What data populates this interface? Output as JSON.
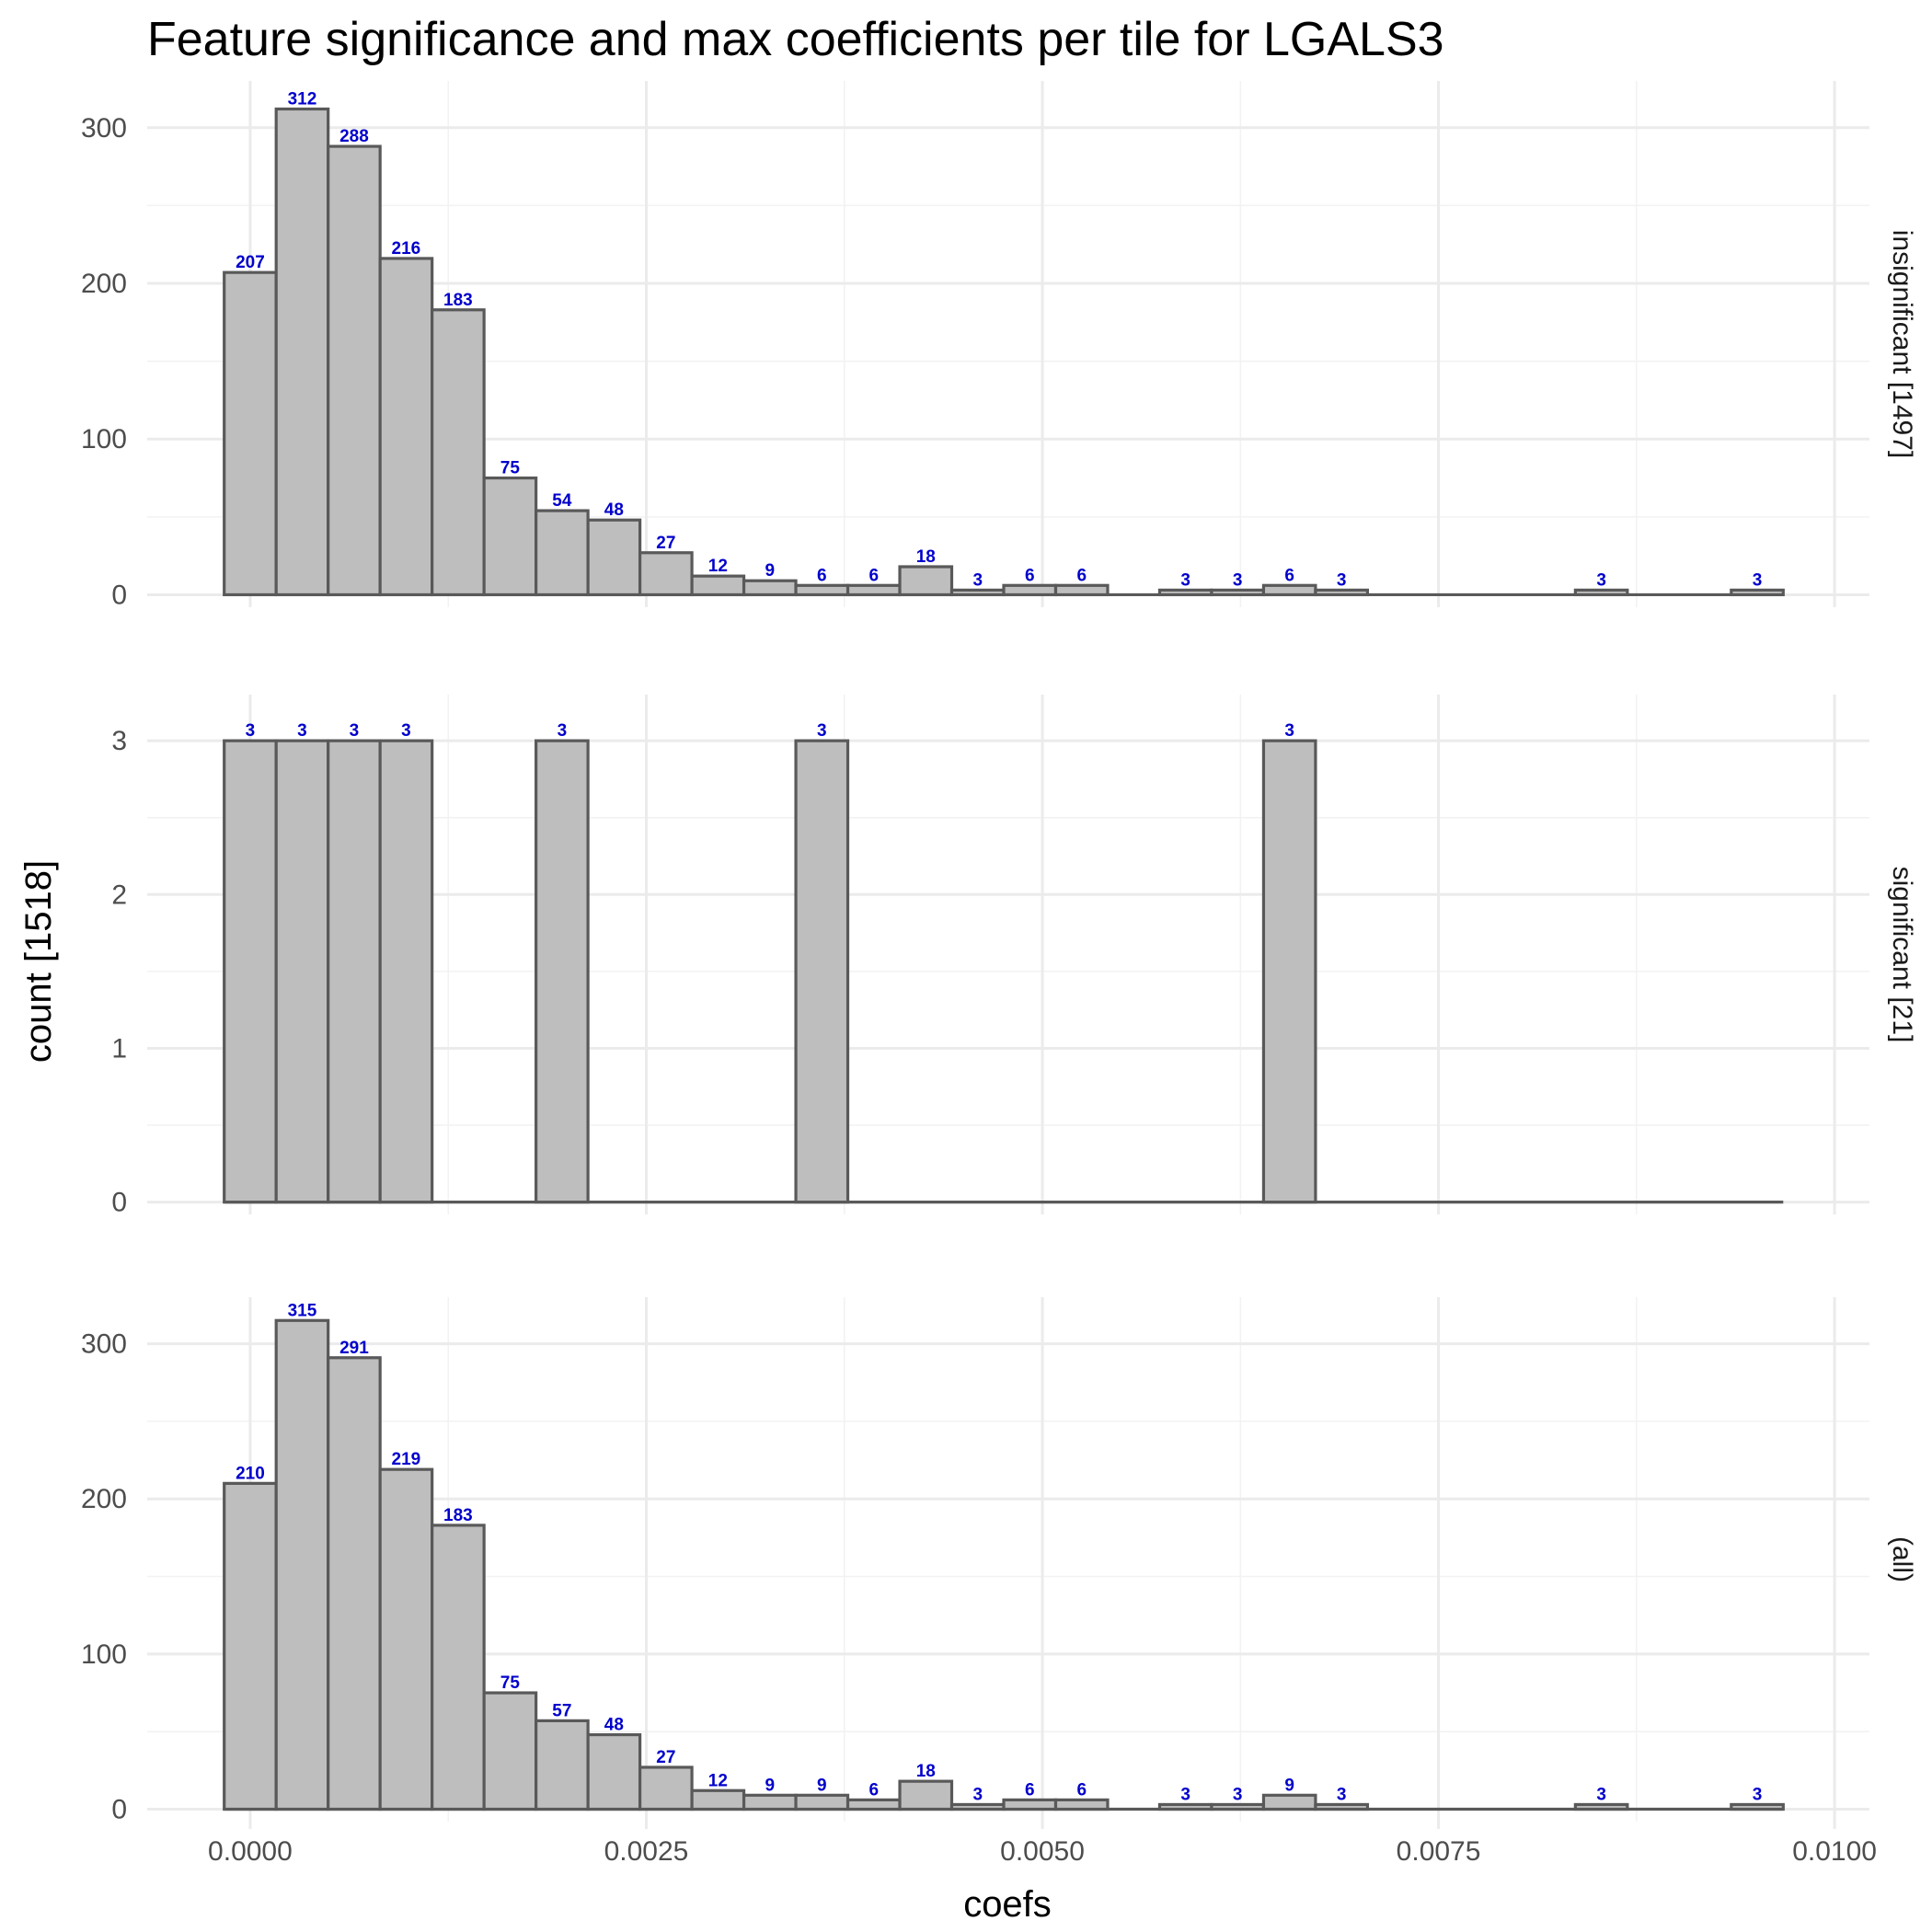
{
  "chart_data": {
    "type": "bar",
    "title": "Feature significance and max coefficients per tile for LGALS3",
    "xlabel": "coefs",
    "ylabel": "count [1518]",
    "xlim": [
      -0.00065,
      0.01022
    ],
    "x_ticks": [
      0.0,
      0.0025,
      0.005,
      0.0075,
      0.01
    ],
    "x_tick_labels": [
      "0.0000",
      "0.0025",
      "0.0050",
      "0.0075",
      "0.0100"
    ],
    "bin_width": 0.000328,
    "bin_start": -0.000164,
    "bin_count": 30,
    "grid": true,
    "facets": [
      {
        "strip": "insignificant [1497]",
        "ylim": [
          -8,
          330
        ],
        "y_ticks": [
          0,
          100,
          200,
          300
        ],
        "y_tick_labels": [
          "0",
          "100",
          "200",
          "300"
        ],
        "bins": [
          {
            "bin": 0,
            "count": 207,
            "label": "207"
          },
          {
            "bin": 1,
            "count": 312,
            "label": "312"
          },
          {
            "bin": 2,
            "count": 288,
            "label": "288"
          },
          {
            "bin": 3,
            "count": 216,
            "label": "216"
          },
          {
            "bin": 4,
            "count": 183,
            "label": "183"
          },
          {
            "bin": 5,
            "count": 75,
            "label": "75"
          },
          {
            "bin": 6,
            "count": 54,
            "label": "54"
          },
          {
            "bin": 7,
            "count": 48,
            "label": "48"
          },
          {
            "bin": 8,
            "count": 27,
            "label": "27"
          },
          {
            "bin": 9,
            "count": 12,
            "label": "12"
          },
          {
            "bin": 10,
            "count": 9,
            "label": "9"
          },
          {
            "bin": 11,
            "count": 6,
            "label": "6"
          },
          {
            "bin": 12,
            "count": 6,
            "label": "6"
          },
          {
            "bin": 13,
            "count": 18,
            "label": "18"
          },
          {
            "bin": 14,
            "count": 3,
            "label": "3"
          },
          {
            "bin": 15,
            "count": 6,
            "label": "6"
          },
          {
            "bin": 16,
            "count": 6,
            "label": "6"
          },
          {
            "bin": 18,
            "count": 3,
            "label": "3"
          },
          {
            "bin": 19,
            "count": 3,
            "label": "3"
          },
          {
            "bin": 20,
            "count": 6,
            "label": "6"
          },
          {
            "bin": 21,
            "count": 3,
            "label": "3"
          },
          {
            "bin": 26,
            "count": 3,
            "label": "3"
          },
          {
            "bin": 29,
            "count": 3,
            "label": "3"
          }
        ]
      },
      {
        "strip": "significant [21]",
        "ylim": [
          -0.08,
          3.3
        ],
        "y_ticks": [
          0,
          1,
          2,
          3
        ],
        "y_tick_labels": [
          "0",
          "1",
          "2",
          "3"
        ],
        "bins": [
          {
            "bin": 0,
            "count": 3,
            "label": "3"
          },
          {
            "bin": 1,
            "count": 3,
            "label": "3"
          },
          {
            "bin": 2,
            "count": 3,
            "label": "3"
          },
          {
            "bin": 3,
            "count": 3,
            "label": "3"
          },
          {
            "bin": 6,
            "count": 3,
            "label": "3"
          },
          {
            "bin": 11,
            "count": 3,
            "label": "3"
          },
          {
            "bin": 20,
            "count": 3,
            "label": "3"
          }
        ]
      },
      {
        "strip": "(all)",
        "ylim": [
          -8,
          330
        ],
        "y_ticks": [
          0,
          100,
          200,
          300
        ],
        "y_tick_labels": [
          "0",
          "100",
          "200",
          "300"
        ],
        "bins": [
          {
            "bin": 0,
            "count": 210,
            "label": "210"
          },
          {
            "bin": 1,
            "count": 315,
            "label": "315"
          },
          {
            "bin": 2,
            "count": 291,
            "label": "291"
          },
          {
            "bin": 3,
            "count": 219,
            "label": "219"
          },
          {
            "bin": 4,
            "count": 183,
            "label": "183"
          },
          {
            "bin": 5,
            "count": 75,
            "label": "75"
          },
          {
            "bin": 6,
            "count": 57,
            "label": "57"
          },
          {
            "bin": 7,
            "count": 48,
            "label": "48"
          },
          {
            "bin": 8,
            "count": 27,
            "label": "27"
          },
          {
            "bin": 9,
            "count": 12,
            "label": "12"
          },
          {
            "bin": 10,
            "count": 9,
            "label": "9"
          },
          {
            "bin": 11,
            "count": 9,
            "label": "9"
          },
          {
            "bin": 12,
            "count": 6,
            "label": "6"
          },
          {
            "bin": 13,
            "count": 18,
            "label": "18"
          },
          {
            "bin": 14,
            "count": 3,
            "label": "3"
          },
          {
            "bin": 15,
            "count": 6,
            "label": "6"
          },
          {
            "bin": 16,
            "count": 6,
            "label": "6"
          },
          {
            "bin": 18,
            "count": 3,
            "label": "3"
          },
          {
            "bin": 19,
            "count": 3,
            "label": "3"
          },
          {
            "bin": 20,
            "count": 9,
            "label": "9"
          },
          {
            "bin": 21,
            "count": 3,
            "label": "3"
          },
          {
            "bin": 26,
            "count": 3,
            "label": "3"
          },
          {
            "bin": 29,
            "count": 3,
            "label": "3"
          }
        ]
      }
    ]
  }
}
